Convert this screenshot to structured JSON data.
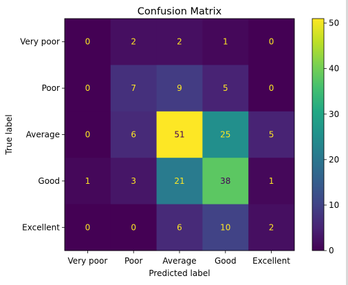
{
  "chart_data": {
    "type": "heatmap",
    "title": "Confusion Matrix",
    "xlabel": "Predicted label",
    "ylabel": "True label",
    "x_categories": [
      "Very poor",
      "Poor",
      "Average",
      "Good",
      "Excellent"
    ],
    "y_categories": [
      "Very poor",
      "Poor",
      "Average",
      "Good",
      "Excellent"
    ],
    "matrix": [
      [
        0,
        2,
        2,
        1,
        0
      ],
      [
        0,
        7,
        9,
        5,
        0
      ],
      [
        0,
        6,
        51,
        25,
        5
      ],
      [
        1,
        3,
        21,
        38,
        1
      ],
      [
        0,
        0,
        6,
        10,
        2
      ]
    ],
    "colormap": "viridis",
    "colorbar": {
      "range": [
        0,
        51
      ],
      "ticks": [
        0,
        10,
        20,
        30,
        40,
        50
      ]
    },
    "text_color_low": "#fde725",
    "text_color_high": "#440154"
  }
}
